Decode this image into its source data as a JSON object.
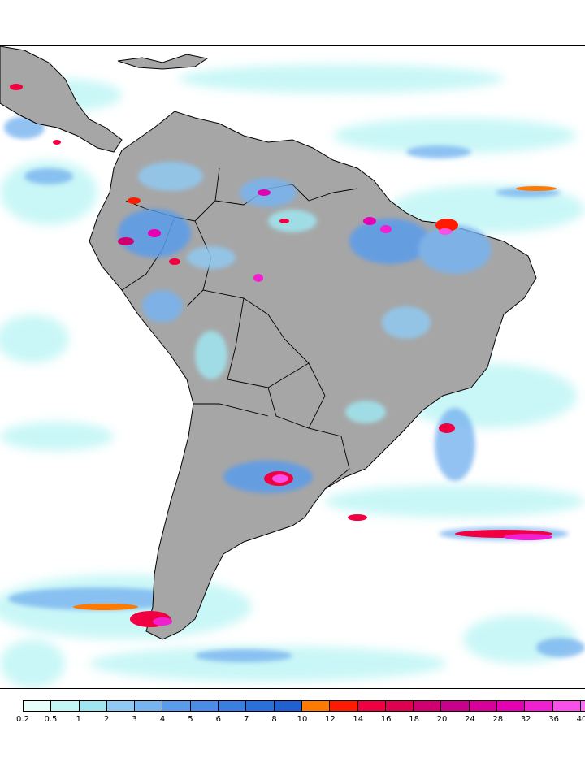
{
  "map": {
    "region": "South America",
    "land_color": "#a6a6a6",
    "ocean_color": "#ffffff",
    "border_color": "#000000"
  },
  "legend": {
    "ticks": [
      "0.2",
      "0.5",
      "1",
      "2",
      "3",
      "4",
      "5",
      "6",
      "7",
      "8",
      "10",
      "12",
      "14",
      "16",
      "18",
      "20",
      "24",
      "28",
      "32",
      "36",
      "40"
    ],
    "colors": [
      "#e6fffd",
      "#c4f6f6",
      "#a0e6f0",
      "#90caf2",
      "#78b4f0",
      "#5a9cec",
      "#4a8ce6",
      "#3a7ee0",
      "#2a70dc",
      "#2060d0",
      "#ff7a00",
      "#ff1a00",
      "#f00040",
      "#e00050",
      "#d00070",
      "#c8008a",
      "#d8009a",
      "#e600b4",
      "#f020d0",
      "#f850e8",
      "#ff70f8"
    ]
  }
}
